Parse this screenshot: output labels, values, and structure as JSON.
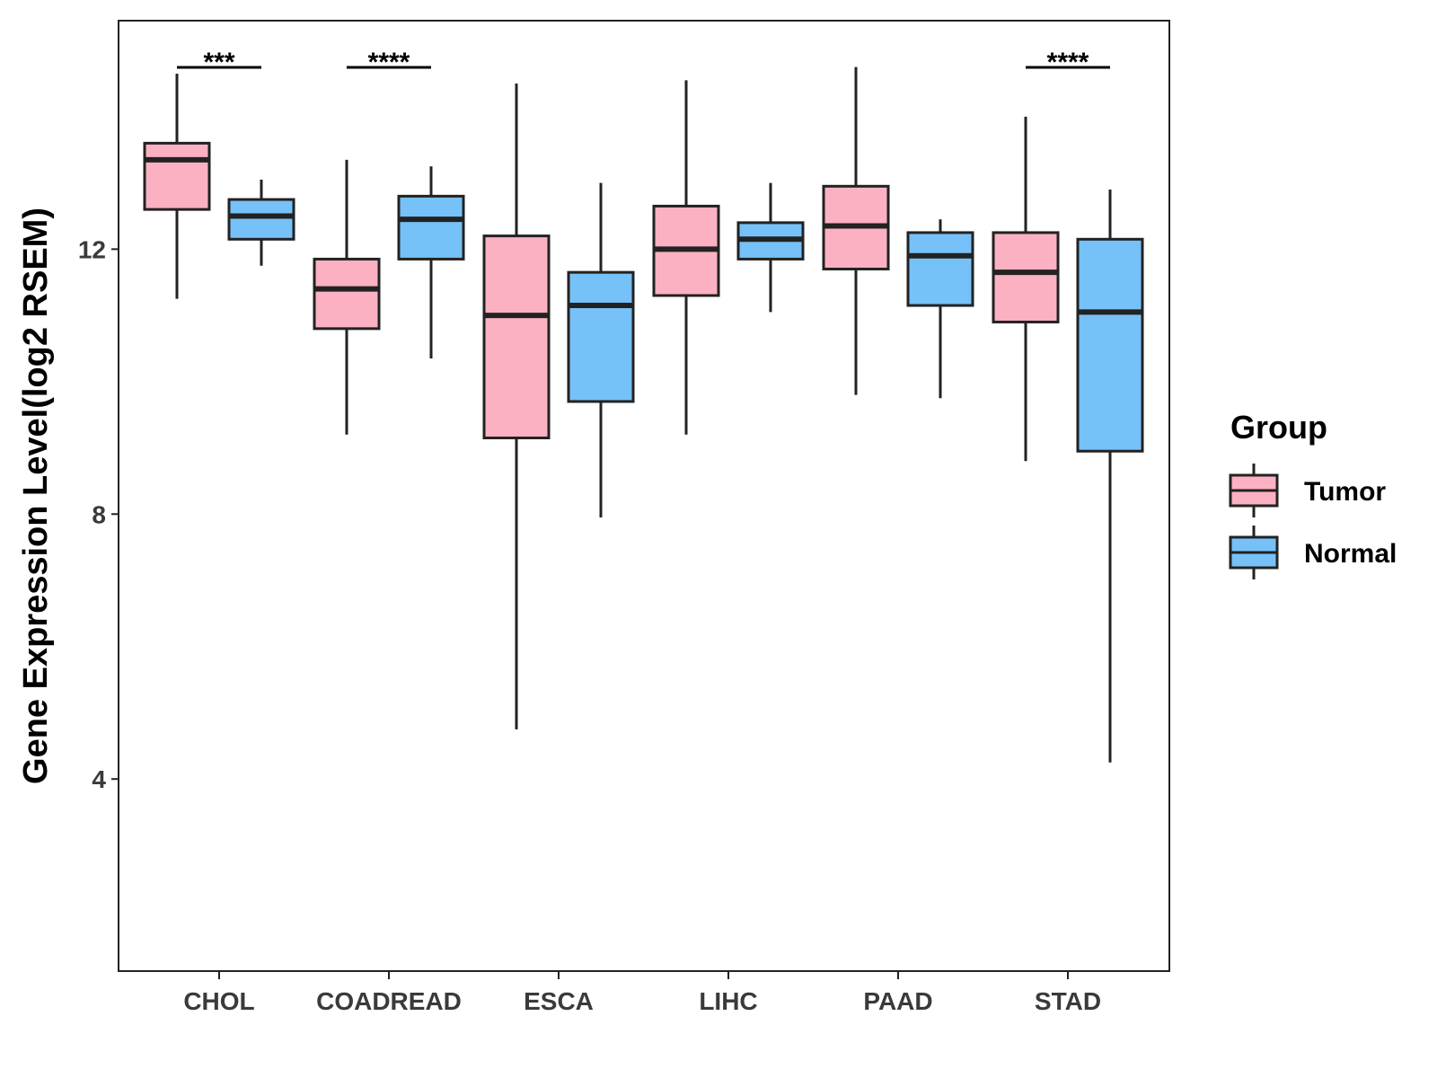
{
  "chart_data": {
    "type": "boxplot",
    "title": "",
    "xlabel": "",
    "ylabel": "Gene Expression Level(log2 RSEM)",
    "ylim": [
      1.1,
      15.45
    ],
    "yticks": [
      4,
      8,
      12
    ],
    "grid": false,
    "legend": {
      "title": "Group",
      "position": "right",
      "entries": [
        {
          "name": "Tumor",
          "color": "#FBB1C2"
        },
        {
          "name": "Normal",
          "color": "#76C1F7"
        }
      ]
    },
    "categories": [
      "CHOL",
      "COADREAD",
      "ESCA",
      "LIHC",
      "PAAD",
      "STAD"
    ],
    "series": [
      {
        "name": "Tumor",
        "color": "#FBB1C2",
        "boxes": [
          {
            "min": 11.25,
            "q1": 12.6,
            "median": 13.35,
            "q3": 13.6,
            "max": 14.65
          },
          {
            "min": 9.2,
            "q1": 10.8,
            "median": 11.4,
            "q3": 11.85,
            "max": 13.35
          },
          {
            "min": 4.75,
            "q1": 9.15,
            "median": 11.0,
            "q3": 12.2,
            "max": 14.5
          },
          {
            "min": 9.2,
            "q1": 11.3,
            "median": 12.0,
            "q3": 12.65,
            "max": 14.55
          },
          {
            "min": 9.8,
            "q1": 11.7,
            "median": 12.35,
            "q3": 12.95,
            "max": 14.75
          },
          {
            "min": 8.8,
            "q1": 10.9,
            "median": 11.65,
            "q3": 12.25,
            "max": 14.0
          }
        ]
      },
      {
        "name": "Normal",
        "color": "#76C1F7",
        "boxes": [
          {
            "min": 11.75,
            "q1": 12.15,
            "median": 12.5,
            "q3": 12.75,
            "max": 13.05
          },
          {
            "min": 10.35,
            "q1": 11.85,
            "median": 12.45,
            "q3": 12.8,
            "max": 13.25
          },
          {
            "min": 7.95,
            "q1": 9.7,
            "median": 11.15,
            "q3": 11.65,
            "max": 13.0
          },
          {
            "min": 11.05,
            "q1": 11.85,
            "median": 12.15,
            "q3": 12.4,
            "max": 13.0
          },
          {
            "min": 9.75,
            "q1": 11.15,
            "median": 11.9,
            "q3": 12.25,
            "max": 12.45
          },
          {
            "min": 4.25,
            "q1": 8.95,
            "median": 11.05,
            "q3": 12.15,
            "max": 12.9
          }
        ]
      }
    ],
    "annotations": [
      {
        "category": "CHOL",
        "label": "***"
      },
      {
        "category": "COADREAD",
        "label": "****"
      },
      {
        "category": "STAD",
        "label": "****"
      }
    ]
  }
}
